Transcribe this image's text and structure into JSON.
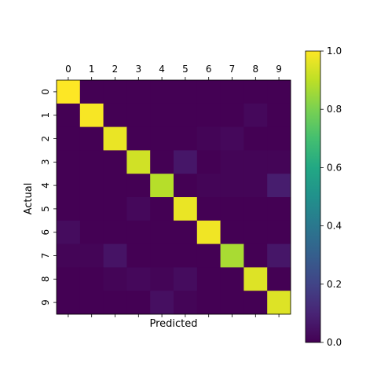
{
  "chart_data": {
    "type": "heatmap",
    "title": "",
    "xlabel": "Predicted",
    "ylabel": "Actual",
    "x_tick_position": "top",
    "x_categories": [
      "0",
      "1",
      "2",
      "3",
      "4",
      "5",
      "6",
      "7",
      "8",
      "9"
    ],
    "y_categories": [
      "0",
      "1",
      "2",
      "3",
      "4",
      "5",
      "6",
      "7",
      "8",
      "9"
    ],
    "colormap": "viridis",
    "color_range": [
      0,
      1
    ],
    "colorbar_ticks": [
      "0.0",
      "0.2",
      "0.4",
      "0.6",
      "0.8",
      "1.0"
    ],
    "values": [
      [
        1.0,
        0.0,
        0.0,
        0.0,
        0.0,
        0.0,
        0.0,
        0.0,
        0.0,
        0.0
      ],
      [
        0.0,
        0.99,
        0.0,
        0.0,
        0.0,
        0.0,
        0.0,
        0.0,
        0.02,
        0.0
      ],
      [
        0.0,
        0.0,
        0.97,
        0.0,
        0.0,
        0.0,
        0.01,
        0.02,
        0.0,
        0.0
      ],
      [
        0.0,
        0.0,
        0.0,
        0.93,
        0.0,
        0.06,
        0.0,
        0.01,
        0.01,
        0.01
      ],
      [
        0.0,
        0.0,
        0.0,
        0.0,
        0.89,
        0.0,
        0.01,
        0.01,
        0.01,
        0.08
      ],
      [
        0.0,
        0.0,
        0.0,
        0.02,
        0.0,
        0.97,
        0.0,
        0.0,
        0.0,
        0.0
      ],
      [
        0.03,
        0.0,
        0.0,
        0.0,
        0.0,
        0.0,
        0.98,
        0.0,
        0.0,
        0.0
      ],
      [
        0.01,
        0.01,
        0.05,
        0.0,
        0.0,
        0.0,
        0.0,
        0.87,
        0.0,
        0.06
      ],
      [
        0.0,
        0.0,
        0.01,
        0.02,
        0.01,
        0.03,
        0.0,
        0.0,
        0.95,
        0.0
      ],
      [
        0.0,
        0.0,
        0.0,
        0.0,
        0.04,
        0.01,
        0.0,
        0.0,
        0.0,
        0.95
      ]
    ]
  }
}
